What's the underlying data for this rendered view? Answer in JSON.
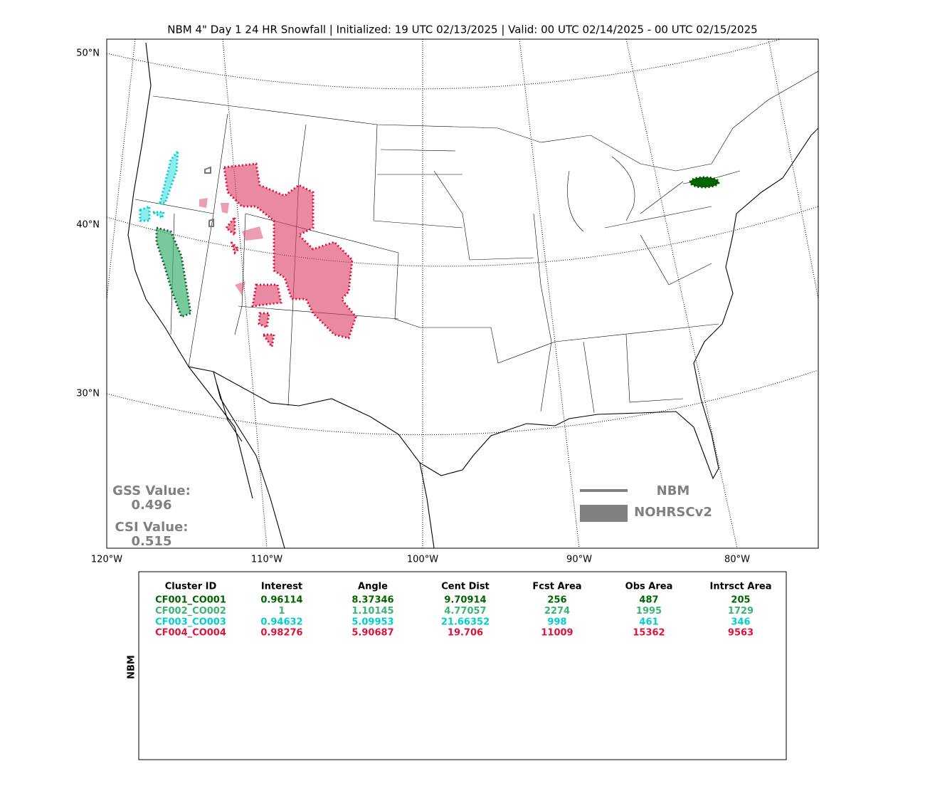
{
  "title": "NBM 4\" Day 1 24 HR Snowfall | Initialized: 19 UTC 02/13/2025 | Valid: 00 UTC 02/14/2025 - 00 UTC 02/15/2025",
  "map": {
    "lat_labels": [
      "50°N",
      "40°N",
      "30°N"
    ],
    "lon_labels": [
      "120°W",
      "110°W",
      "100°W",
      "90°W",
      "80°W"
    ],
    "legend": {
      "line": "NBM",
      "fill": "NOHRSCv2"
    },
    "scores": {
      "gss_label": "GSS Value:",
      "gss": "0.496",
      "csi_label": "CSI Value:",
      "csi": "0.515"
    }
  },
  "table": {
    "side_label": "NBM",
    "header": [
      "Cluster ID",
      "Interest",
      "Angle",
      "Cent Dist",
      "Fcst Area",
      "Obs Area",
      "Intrsct Area"
    ],
    "rows": [
      {
        "color": "#006400",
        "cells": [
          "CF001_CO001",
          "0.96114",
          "8.37346",
          "9.70914",
          "256",
          "487",
          "205"
        ]
      },
      {
        "color": "#3cb371",
        "cells": [
          "CF002_CO002",
          "1",
          "1.10145",
          "4.77057",
          "2274",
          "1995",
          "1729"
        ]
      },
      {
        "color": "#00ced1",
        "cells": [
          "CF003_CO003",
          "0.94632",
          "5.09953",
          "21.66352",
          "998",
          "461",
          "346"
        ]
      },
      {
        "color": "#dc143c",
        "cells": [
          "CF004_CO004",
          "0.98276",
          "5.90687",
          "19.706",
          "11009",
          "15362",
          "9563"
        ]
      }
    ]
  }
}
